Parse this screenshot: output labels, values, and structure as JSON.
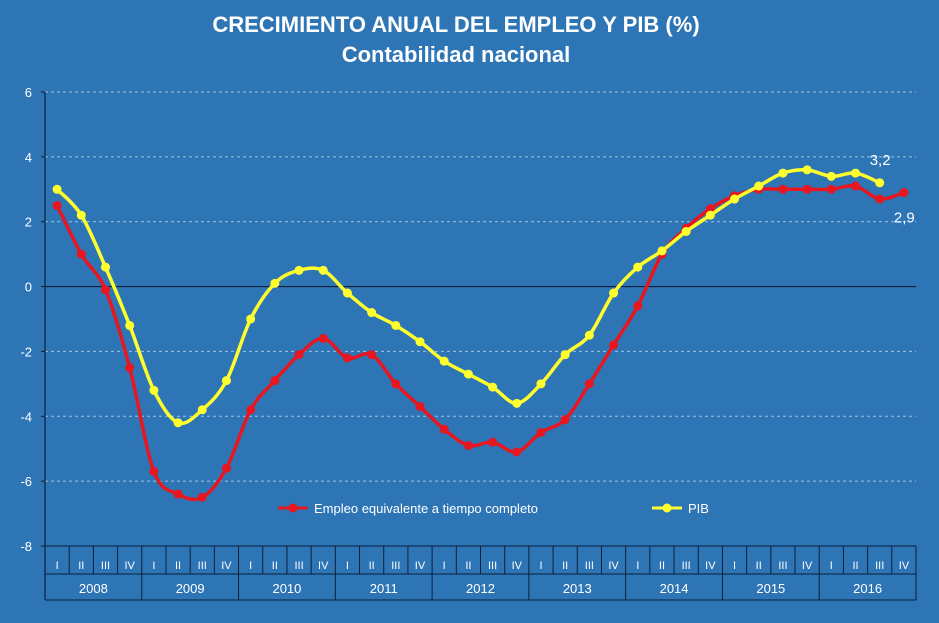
{
  "title": {
    "line1": "CRECIMIENTO ANUAL  DEL EMPLEO Y PIB (%)",
    "line2": "Contabilidad nacional"
  },
  "colors": {
    "background": "#2e75b6",
    "employment": "#e8161f",
    "gdp": "#ffff2e",
    "grid": "#9fc3e6",
    "axis": "#0b1f3a"
  },
  "chart_data": {
    "type": "line",
    "title": "CRECIMIENTO ANUAL  DEL EMPLEO Y PIB (%)",
    "subtitle": "Contabilidad nacional",
    "xlabel": "",
    "ylabel": "",
    "ylim": [
      -8,
      6
    ],
    "yticks": [
      6,
      4,
      2,
      0,
      -2,
      -4,
      -6,
      -8
    ],
    "quarters": [
      "I",
      "II",
      "III",
      "IV",
      "I",
      "II",
      "III",
      "IV",
      "I",
      "II",
      "III",
      "IV",
      "I",
      "II",
      "III",
      "IV",
      "I",
      "II",
      "III",
      "IV",
      "I",
      "II",
      "III",
      "IV",
      "I",
      "II",
      "III",
      "IV",
      "I",
      "II",
      "III",
      "IV",
      "I",
      "II",
      "III",
      "IV"
    ],
    "years": [
      "2008",
      "2009",
      "2010",
      "2011",
      "2012",
      "2013",
      "2014",
      "2015",
      "2016"
    ],
    "series": [
      {
        "name": "Empleo equivalente a tiempo completo",
        "color": "#e8161f",
        "values": [
          2.5,
          1.0,
          -0.1,
          -2.5,
          -5.7,
          -6.4,
          -6.5,
          -5.6,
          -3.8,
          -2.9,
          -2.1,
          -1.6,
          -2.2,
          -2.1,
          -3.0,
          -3.7,
          -4.4,
          -4.9,
          -4.8,
          -5.1,
          -4.5,
          -4.1,
          -3.0,
          -1.8,
          -0.6,
          1.0,
          1.8,
          2.4,
          2.8,
          3.0,
          3.0,
          3.0,
          3.0,
          3.1,
          2.7,
          2.9
        ]
      },
      {
        "name": "PIB",
        "color": "#ffff2e",
        "values": [
          3.0,
          2.2,
          0.6,
          -1.2,
          -3.2,
          -4.2,
          -3.8,
          -2.9,
          -1.0,
          0.1,
          0.5,
          0.5,
          -0.2,
          -0.8,
          -1.2,
          -1.7,
          -2.3,
          -2.7,
          -3.1,
          -3.6,
          -3.0,
          -2.1,
          -1.5,
          -0.2,
          0.6,
          1.1,
          1.7,
          2.2,
          2.7,
          3.1,
          3.5,
          3.6,
          3.4,
          3.5,
          3.2,
          null
        ]
      }
    ],
    "annotations": [
      {
        "text": "3,2",
        "series": "PIB"
      },
      {
        "text": "2,9",
        "series": "Empleo equivalente a tiempo completo"
      }
    ],
    "legend_position": "bottom-center"
  }
}
